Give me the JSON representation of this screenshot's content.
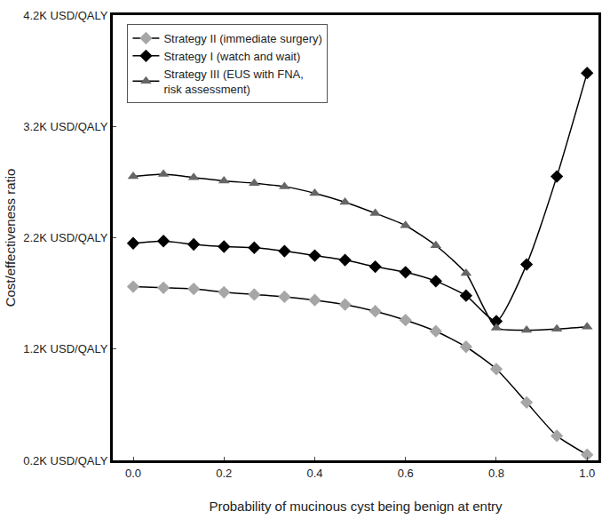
{
  "chart_data": {
    "type": "line",
    "x_label": "Probability of mucinous cyst being benign at entry",
    "y_label": "Cost/effectiveness ratio",
    "x": [
      0,
      0.0667,
      0.1333,
      0.2,
      0.2667,
      0.3333,
      0.4,
      0.4667,
      0.5333,
      0.6,
      0.6667,
      0.7333,
      0.8,
      0.8667,
      0.9333,
      1.0
    ],
    "series": [
      {
        "name": "Strategy II (immediate surgery)",
        "color": "#a6a6a6",
        "marker": "diamond",
        "values": [
          1760,
          1750,
          1740,
          1710,
          1690,
          1670,
          1640,
          1600,
          1540,
          1460,
          1360,
          1220,
          1020,
          720,
          420,
          250
        ]
      },
      {
        "name": "Strategy I (watch and wait)",
        "color": "#000000",
        "marker": "diamond",
        "values": [
          2150,
          2170,
          2140,
          2120,
          2110,
          2080,
          2040,
          2000,
          1940,
          1890,
          1810,
          1680,
          1450,
          1960,
          2750,
          3680
        ]
      },
      {
        "name": "Strategy III (EUS with FNA,\nrisk assessment)",
        "color": "#666666",
        "marker": "triangle-up",
        "values": [
          2750,
          2770,
          2740,
          2710,
          2690,
          2660,
          2600,
          2520,
          2420,
          2310,
          2130,
          1880,
          1390,
          1370,
          1380,
          1400
        ]
      }
    ],
    "xlim": [
      -0.045,
      1.025
    ],
    "xticks": [
      {
        "value": 0,
        "label": "0.0"
      },
      0.2,
      0.4,
      0.6,
      0.8,
      {
        "value": 1,
        "label": "1.0"
      }
    ],
    "ylim": [
      200,
      4200
    ],
    "yticks": [
      {
        "value": 200,
        "label": "0.2K USD/QALY"
      },
      {
        "value": 1200,
        "label": "1.2K USD/QALY"
      },
      {
        "value": 2200,
        "label": "2.2K USD/QALY"
      },
      {
        "value": 3200,
        "label": "3.2K USD/QALY"
      },
      {
        "value": 4200,
        "label": "4.2K USD/QALY"
      }
    ],
    "grid": false,
    "legend": "top-left",
    "line_style": "solid"
  }
}
